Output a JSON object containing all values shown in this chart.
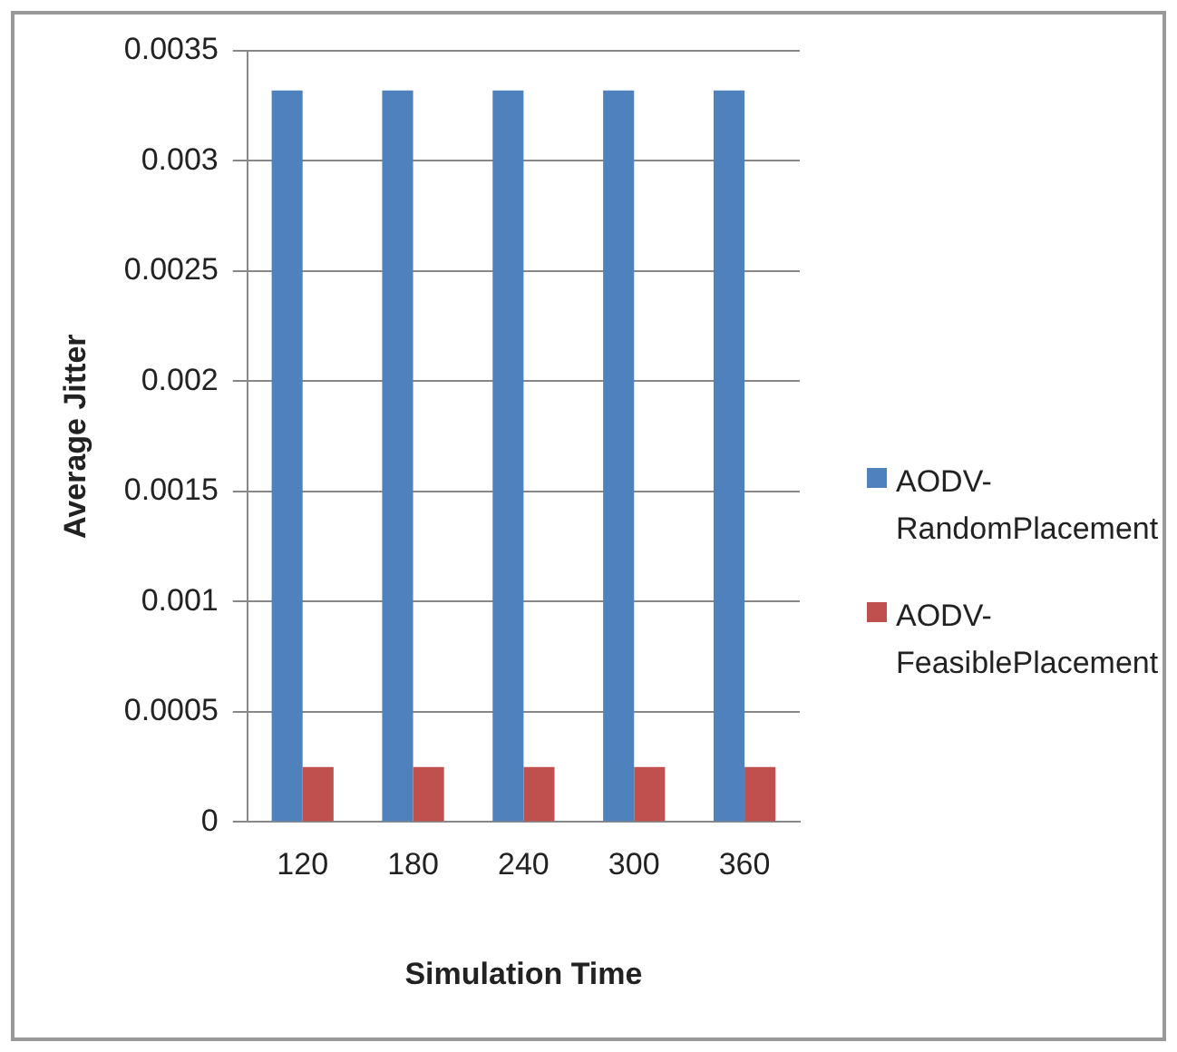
{
  "chart_data": {
    "type": "bar",
    "xlabel": "Simulation Time",
    "ylabel": "Average Jitter",
    "categories": [
      "120",
      "180",
      "240",
      "300",
      "360"
    ],
    "series": [
      {
        "name": "AODV-RandomPlacement",
        "color": "#4f81bd",
        "values": [
          0.00332,
          0.00332,
          0.00332,
          0.00332,
          0.00332
        ]
      },
      {
        "name": "AODV-FeasiblePlacement",
        "color": "#c0504d",
        "values": [
          0.00025,
          0.00025,
          0.00025,
          0.00025,
          0.00025
        ]
      }
    ],
    "ylim": [
      0,
      0.0035
    ],
    "yticks": [
      0,
      0.0005,
      0.001,
      0.0015,
      0.002,
      0.0025,
      0.003,
      0.0035
    ],
    "grid": "y",
    "legend": "right"
  }
}
